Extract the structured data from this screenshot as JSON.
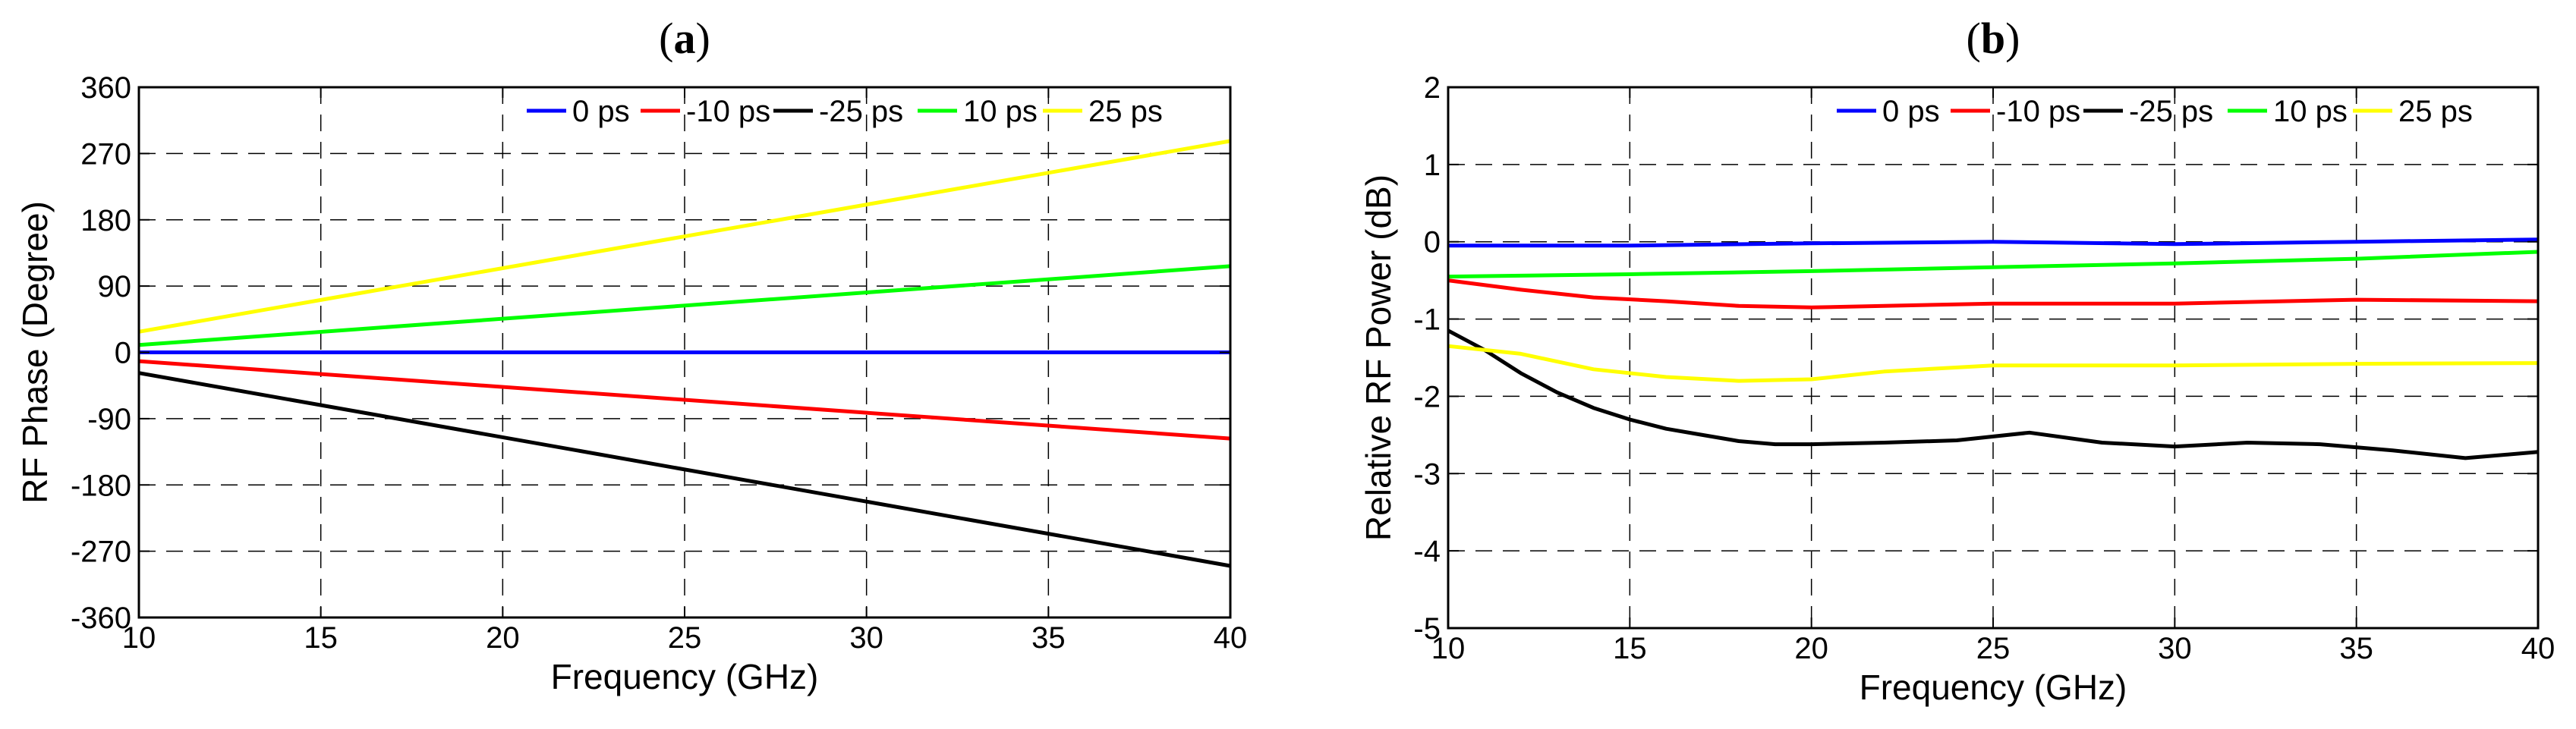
{
  "chart_data": [
    {
      "panel": "(a)",
      "panel_parts": [
        "(",
        "a",
        ")"
      ],
      "type": "line",
      "title": "",
      "xlabel": "Frequency (GHz)",
      "ylabel": "RF Phase (Degree)",
      "xlim": [
        10,
        40
      ],
      "ylim": [
        -360,
        360
      ],
      "xticks": [
        10,
        15,
        20,
        25,
        30,
        35,
        40
      ],
      "yticks": [
        -360,
        -270,
        -180,
        -90,
        0,
        90,
        180,
        270,
        360
      ],
      "xtick_labels": [
        "10",
        "15",
        "20",
        "25",
        "30",
        "35",
        "40"
      ],
      "ytick_labels": [
        "-360",
        "-270",
        "-180",
        "-90",
        "0",
        "90",
        "180",
        "270",
        "360"
      ],
      "grid": true,
      "legend_position": "top-right",
      "series": [
        {
          "name": "0 ps",
          "color": "#0000ff",
          "x": [
            10,
            40
          ],
          "values": [
            0,
            0
          ]
        },
        {
          "name": "-10 ps",
          "color": "#ff0000",
          "x": [
            10,
            40
          ],
          "values": [
            -12,
            -117
          ]
        },
        {
          "name": "-25 ps",
          "color": "#000000",
          "x": [
            10,
            40
          ],
          "values": [
            -28,
            -290
          ]
        },
        {
          "name": "10 ps",
          "color": "#00ff00",
          "x": [
            10,
            40
          ],
          "values": [
            10,
            117
          ]
        },
        {
          "name": "25 ps",
          "color": "#ffff00",
          "x": [
            10,
            40
          ],
          "values": [
            28,
            287
          ]
        }
      ]
    },
    {
      "panel": "(b)",
      "panel_parts": [
        "(",
        "b",
        ")"
      ],
      "type": "line",
      "title": "",
      "xlabel": "Frequency (GHz)",
      "ylabel": "Relative RF Power (dB)",
      "xlim": [
        10,
        40
      ],
      "ylim": [
        -5,
        2
      ],
      "xticks": [
        10,
        15,
        20,
        25,
        30,
        35,
        40
      ],
      "yticks": [
        -5,
        -4,
        -3,
        -2,
        -1,
        0,
        1,
        2
      ],
      "xtick_labels": [
        "10",
        "15",
        "20",
        "25",
        "30",
        "35",
        "40"
      ],
      "ytick_labels": [
        "-5",
        "-4",
        "-3",
        "-2",
        "-1",
        "0",
        "1",
        "2"
      ],
      "grid": true,
      "legend_position": "top-right",
      "series": [
        {
          "name": "0 ps",
          "color": "#0000ff",
          "x": [
            10,
            15,
            20,
            25,
            30,
            35,
            40
          ],
          "values": [
            -0.05,
            -0.05,
            -0.02,
            0.0,
            -0.03,
            0.0,
            0.03
          ]
        },
        {
          "name": "-10 ps",
          "color": "#ff0000",
          "x": [
            10,
            12,
            14,
            16,
            18,
            20,
            22,
            25,
            30,
            35,
            40
          ],
          "values": [
            -0.5,
            -0.62,
            -0.72,
            -0.77,
            -0.83,
            -0.85,
            -0.83,
            -0.8,
            -0.8,
            -0.75,
            -0.77
          ]
        },
        {
          "name": "-25 ps",
          "color": "#000000",
          "x": [
            10,
            11,
            12,
            13,
            14,
            15,
            16,
            17,
            18,
            19,
            20,
            22,
            24,
            26,
            28,
            30,
            32,
            34,
            36,
            38,
            40
          ],
          "values": [
            -1.15,
            -1.4,
            -1.7,
            -1.95,
            -2.15,
            -2.3,
            -2.42,
            -2.5,
            -2.58,
            -2.62,
            -2.62,
            -2.6,
            -2.57,
            -2.47,
            -2.6,
            -2.65,
            -2.6,
            -2.62,
            -2.7,
            -2.8,
            -2.72
          ]
        },
        {
          "name": "10 ps",
          "color": "#00ff00",
          "x": [
            10,
            15,
            20,
            25,
            30,
            35,
            40
          ],
          "values": [
            -0.45,
            -0.42,
            -0.38,
            -0.33,
            -0.28,
            -0.22,
            -0.13
          ]
        },
        {
          "name": "25 ps",
          "color": "#ffff00",
          "x": [
            10,
            12,
            14,
            16,
            18,
            20,
            22,
            25,
            30,
            35,
            40
          ],
          "values": [
            -1.35,
            -1.45,
            -1.65,
            -1.75,
            -1.8,
            -1.78,
            -1.68,
            -1.6,
            -1.6,
            -1.58,
            -1.57
          ]
        }
      ]
    }
  ]
}
